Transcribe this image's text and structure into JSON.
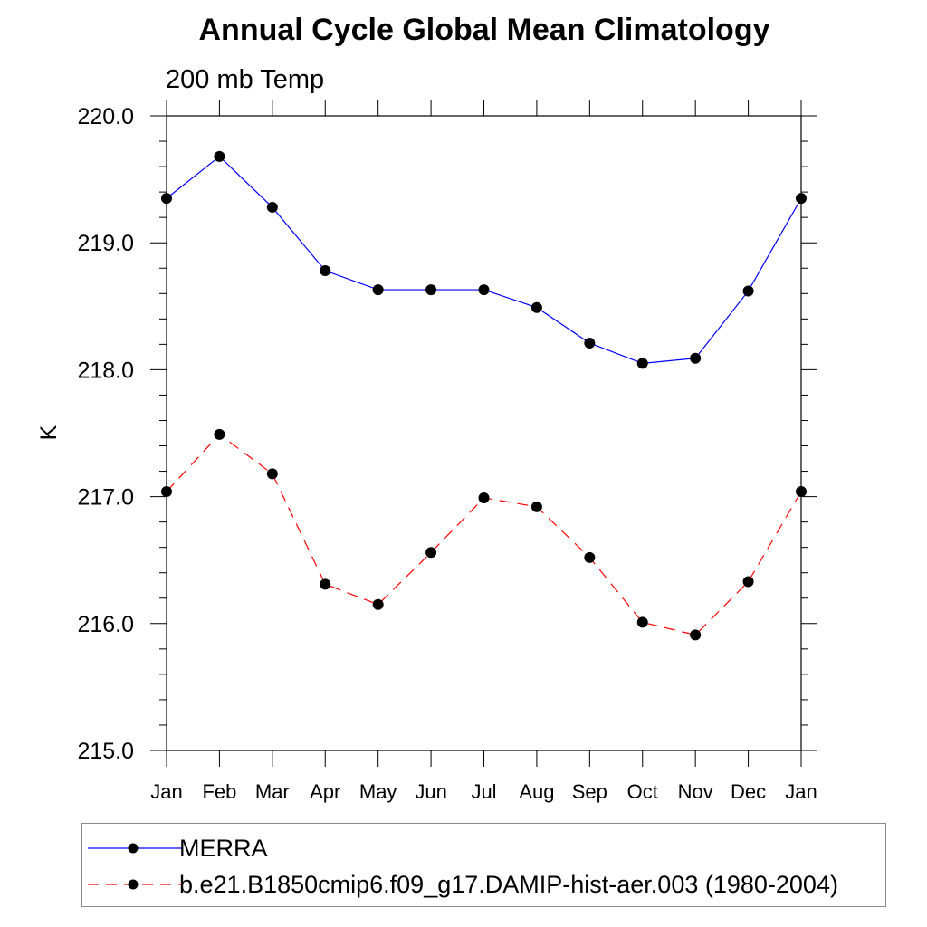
{
  "chart_data": {
    "type": "line",
    "title": "Annual Cycle Global Mean Climatology",
    "subtitle": "200 mb Temp",
    "ylabel": "K",
    "xlabel": "",
    "ylim": [
      215.0,
      220.0
    ],
    "yticks": [
      "215.0",
      "216.0",
      "217.0",
      "218.0",
      "219.0",
      "220.0"
    ],
    "categories": [
      "Jan",
      "Feb",
      "Mar",
      "Apr",
      "May",
      "Jun",
      "Jul",
      "Aug",
      "Sep",
      "Oct",
      "Nov",
      "Dec",
      "Jan"
    ],
    "series": [
      {
        "name": "MERRA",
        "color": "#0000ff",
        "dash": "solid",
        "values": [
          219.35,
          219.68,
          219.28,
          218.78,
          218.63,
          218.63,
          218.63,
          218.49,
          218.21,
          218.05,
          218.09,
          218.62,
          219.35
        ]
      },
      {
        "name": "b.e21.B1850cmip6.f09_g17.DAMIP-hist-aer.003 (1980-2004)",
        "color": "#ff0000",
        "dash": "dashed",
        "values": [
          217.04,
          217.49,
          217.18,
          216.31,
          216.15,
          216.56,
          216.99,
          216.92,
          216.52,
          216.01,
          215.91,
          216.33,
          217.04
        ]
      }
    ],
    "legend_position": "bottom"
  }
}
